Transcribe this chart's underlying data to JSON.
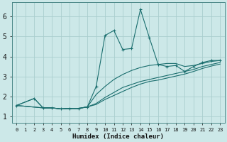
{
  "xlabel": "Humidex (Indice chaleur)",
  "bg_color": "#cce8e8",
  "grid_color": "#aacece",
  "line_color": "#1a6e6e",
  "xlim": [
    -0.5,
    23.5
  ],
  "ylim": [
    0.7,
    6.7
  ],
  "xticks": [
    0,
    1,
    2,
    3,
    4,
    5,
    6,
    7,
    8,
    9,
    10,
    11,
    12,
    13,
    14,
    15,
    16,
    17,
    18,
    19,
    20,
    21,
    22,
    23
  ],
  "yticks": [
    1,
    2,
    3,
    4,
    5,
    6
  ],
  "series": [
    {
      "x": [
        0,
        2,
        3,
        4,
        5,
        6,
        7,
        8,
        9,
        10,
        11,
        12,
        13,
        14,
        15,
        16,
        17,
        18,
        19,
        20,
        21,
        22,
        23
      ],
      "y": [
        1.55,
        1.9,
        1.43,
        1.43,
        1.38,
        1.4,
        1.4,
        1.48,
        2.5,
        5.05,
        5.3,
        4.35,
        4.4,
        6.35,
        4.95,
        3.6,
        3.5,
        3.55,
        3.25,
        3.5,
        3.7,
        3.8,
        3.8
      ],
      "markers": true
    },
    {
      "x": [
        0,
        2,
        3,
        4,
        5,
        6,
        7,
        8,
        9,
        10,
        11,
        12,
        13,
        14,
        15,
        16,
        17,
        18,
        19,
        20,
        21,
        22,
        23
      ],
      "y": [
        1.55,
        1.9,
        1.43,
        1.43,
        1.38,
        1.4,
        1.4,
        1.48,
        2.1,
        2.5,
        2.85,
        3.1,
        3.3,
        3.45,
        3.55,
        3.6,
        3.65,
        3.65,
        3.5,
        3.55,
        3.65,
        3.75,
        3.8
      ],
      "markers": false
    },
    {
      "x": [
        0,
        3,
        4,
        5,
        6,
        7,
        8,
        9,
        10,
        11,
        12,
        13,
        14,
        15,
        16,
        17,
        18,
        19,
        20,
        21,
        22,
        23
      ],
      "y": [
        1.55,
        1.43,
        1.43,
        1.38,
        1.4,
        1.4,
        1.48,
        1.65,
        1.95,
        2.2,
        2.45,
        2.6,
        2.75,
        2.85,
        2.95,
        3.05,
        3.15,
        3.25,
        3.35,
        3.5,
        3.6,
        3.7
      ],
      "markers": false
    },
    {
      "x": [
        0,
        3,
        4,
        5,
        6,
        7,
        8,
        9,
        10,
        11,
        12,
        13,
        14,
        15,
        16,
        17,
        18,
        19,
        20,
        21,
        22,
        23
      ],
      "y": [
        1.55,
        1.43,
        1.43,
        1.38,
        1.4,
        1.4,
        1.48,
        1.6,
        1.85,
        2.05,
        2.25,
        2.45,
        2.62,
        2.75,
        2.82,
        2.92,
        3.02,
        3.12,
        3.25,
        3.4,
        3.52,
        3.62
      ],
      "markers": false
    }
  ]
}
